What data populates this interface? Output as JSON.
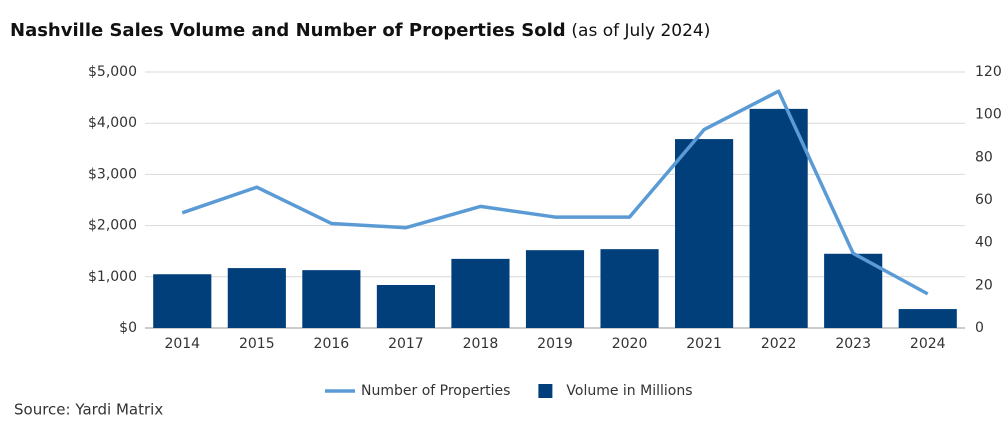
{
  "chart_data": {
    "type": "bar",
    "title": "Nashville Sales Volume and Number of Properties Sold",
    "subtitle": "(as of July 2024)",
    "source": "Source: Yardi Matrix",
    "categories": [
      "2014",
      "2015",
      "2016",
      "2017",
      "2018",
      "2019",
      "2020",
      "2021",
      "2022",
      "2023",
      "2024"
    ],
    "series": [
      {
        "name": "Number of Properties",
        "type": "line",
        "axis": "y2",
        "color": "#5b9bd5",
        "values": [
          54,
          66,
          49,
          47,
          57,
          52,
          52,
          93,
          111,
          35,
          16
        ]
      },
      {
        "name": "Volume in Millions",
        "type": "bar",
        "color": "#003f7a",
        "values": [
          1050,
          1170,
          1130,
          840,
          1350,
          1520,
          1540,
          3690,
          4280,
          1450,
          370
        ]
      }
    ],
    "ylim": [
      0,
      5000
    ],
    "yticks": [
      {
        "value": 0,
        "label": "$0"
      },
      {
        "value": 1000,
        "label": "$1,000"
      },
      {
        "value": 2000,
        "label": "$2,000"
      },
      {
        "value": 3000,
        "label": "$3,000"
      },
      {
        "value": 4000,
        "label": "$4,000"
      },
      {
        "value": 5000,
        "label": "$5,000"
      }
    ],
    "y2lim": [
      0,
      120
    ],
    "y2ticks": [
      0,
      20,
      40,
      60,
      80,
      100,
      120
    ],
    "grid": true,
    "legend": "bottom"
  }
}
